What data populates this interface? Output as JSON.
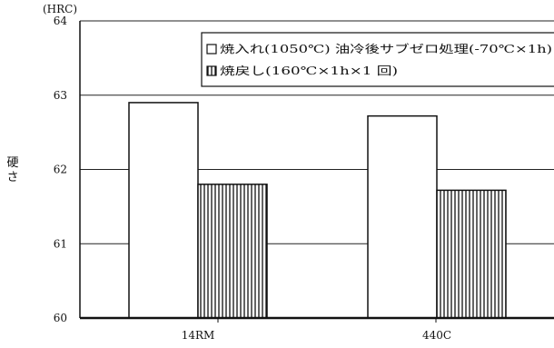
{
  "chart_data": {
    "type": "bar",
    "unit_label": "(HRC)",
    "ylabel": "硬さ",
    "ylim": [
      60,
      64
    ],
    "yticks": [
      60,
      61,
      62,
      63,
      64
    ],
    "grid": true,
    "legend_position": "top-right",
    "categories": [
      "14RM",
      "440C"
    ],
    "series": [
      {
        "name": "焼入れ(1050℃) 油冷後サブゼロ処理(-70℃×1h)",
        "values": [
          62.9,
          62.72
        ],
        "fill": "white"
      },
      {
        "name": "焼戻し(160℃×1h×1 回)",
        "values": [
          61.8,
          61.72
        ],
        "fill": "vertical-hatch"
      }
    ]
  }
}
